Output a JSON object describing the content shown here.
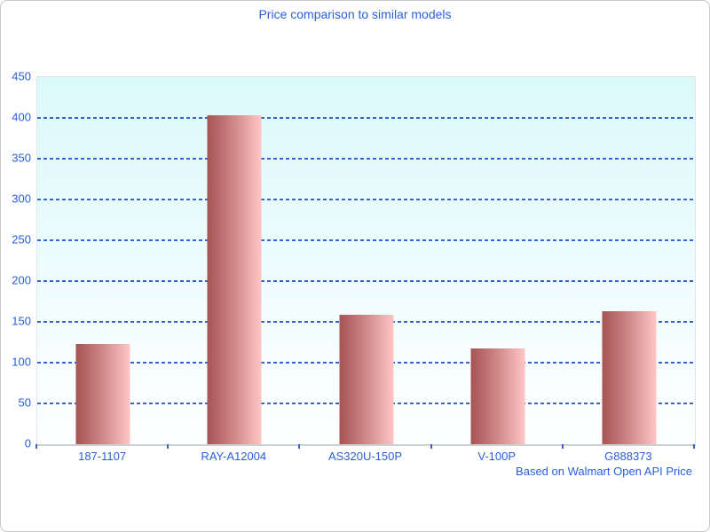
{
  "window": {
    "background": "#ffffff",
    "border_color": "#c9c9c9"
  },
  "chart_data": {
    "type": "bar",
    "title": "Price comparison to similar models",
    "caption": "Based on Walmart Open API Price",
    "categories": [
      "187-1107",
      "RAY-A12004",
      "AS320U-150P",
      "V-100P",
      "G888373"
    ],
    "values": [
      123,
      403,
      159,
      117,
      163
    ],
    "xlabel": "",
    "ylabel": "",
    "ylim": [
      0,
      450
    ],
    "ytick_step": 50,
    "grid": "dashed-horizontal",
    "legend": "none",
    "colors": {
      "text_blue": "#2a60dd",
      "gridline_blue": "#3a62cc",
      "bar_gradient_left": "#a65353",
      "bar_gradient_mid": "#d28b8b",
      "bar_gradient_right": "#ffc6c6",
      "plot_bg_top": "#dbf9fb",
      "plot_bg_bottom": "#ffffff",
      "plot_border": "#dde5e5",
      "axis_line": "#c9d1d1"
    }
  }
}
